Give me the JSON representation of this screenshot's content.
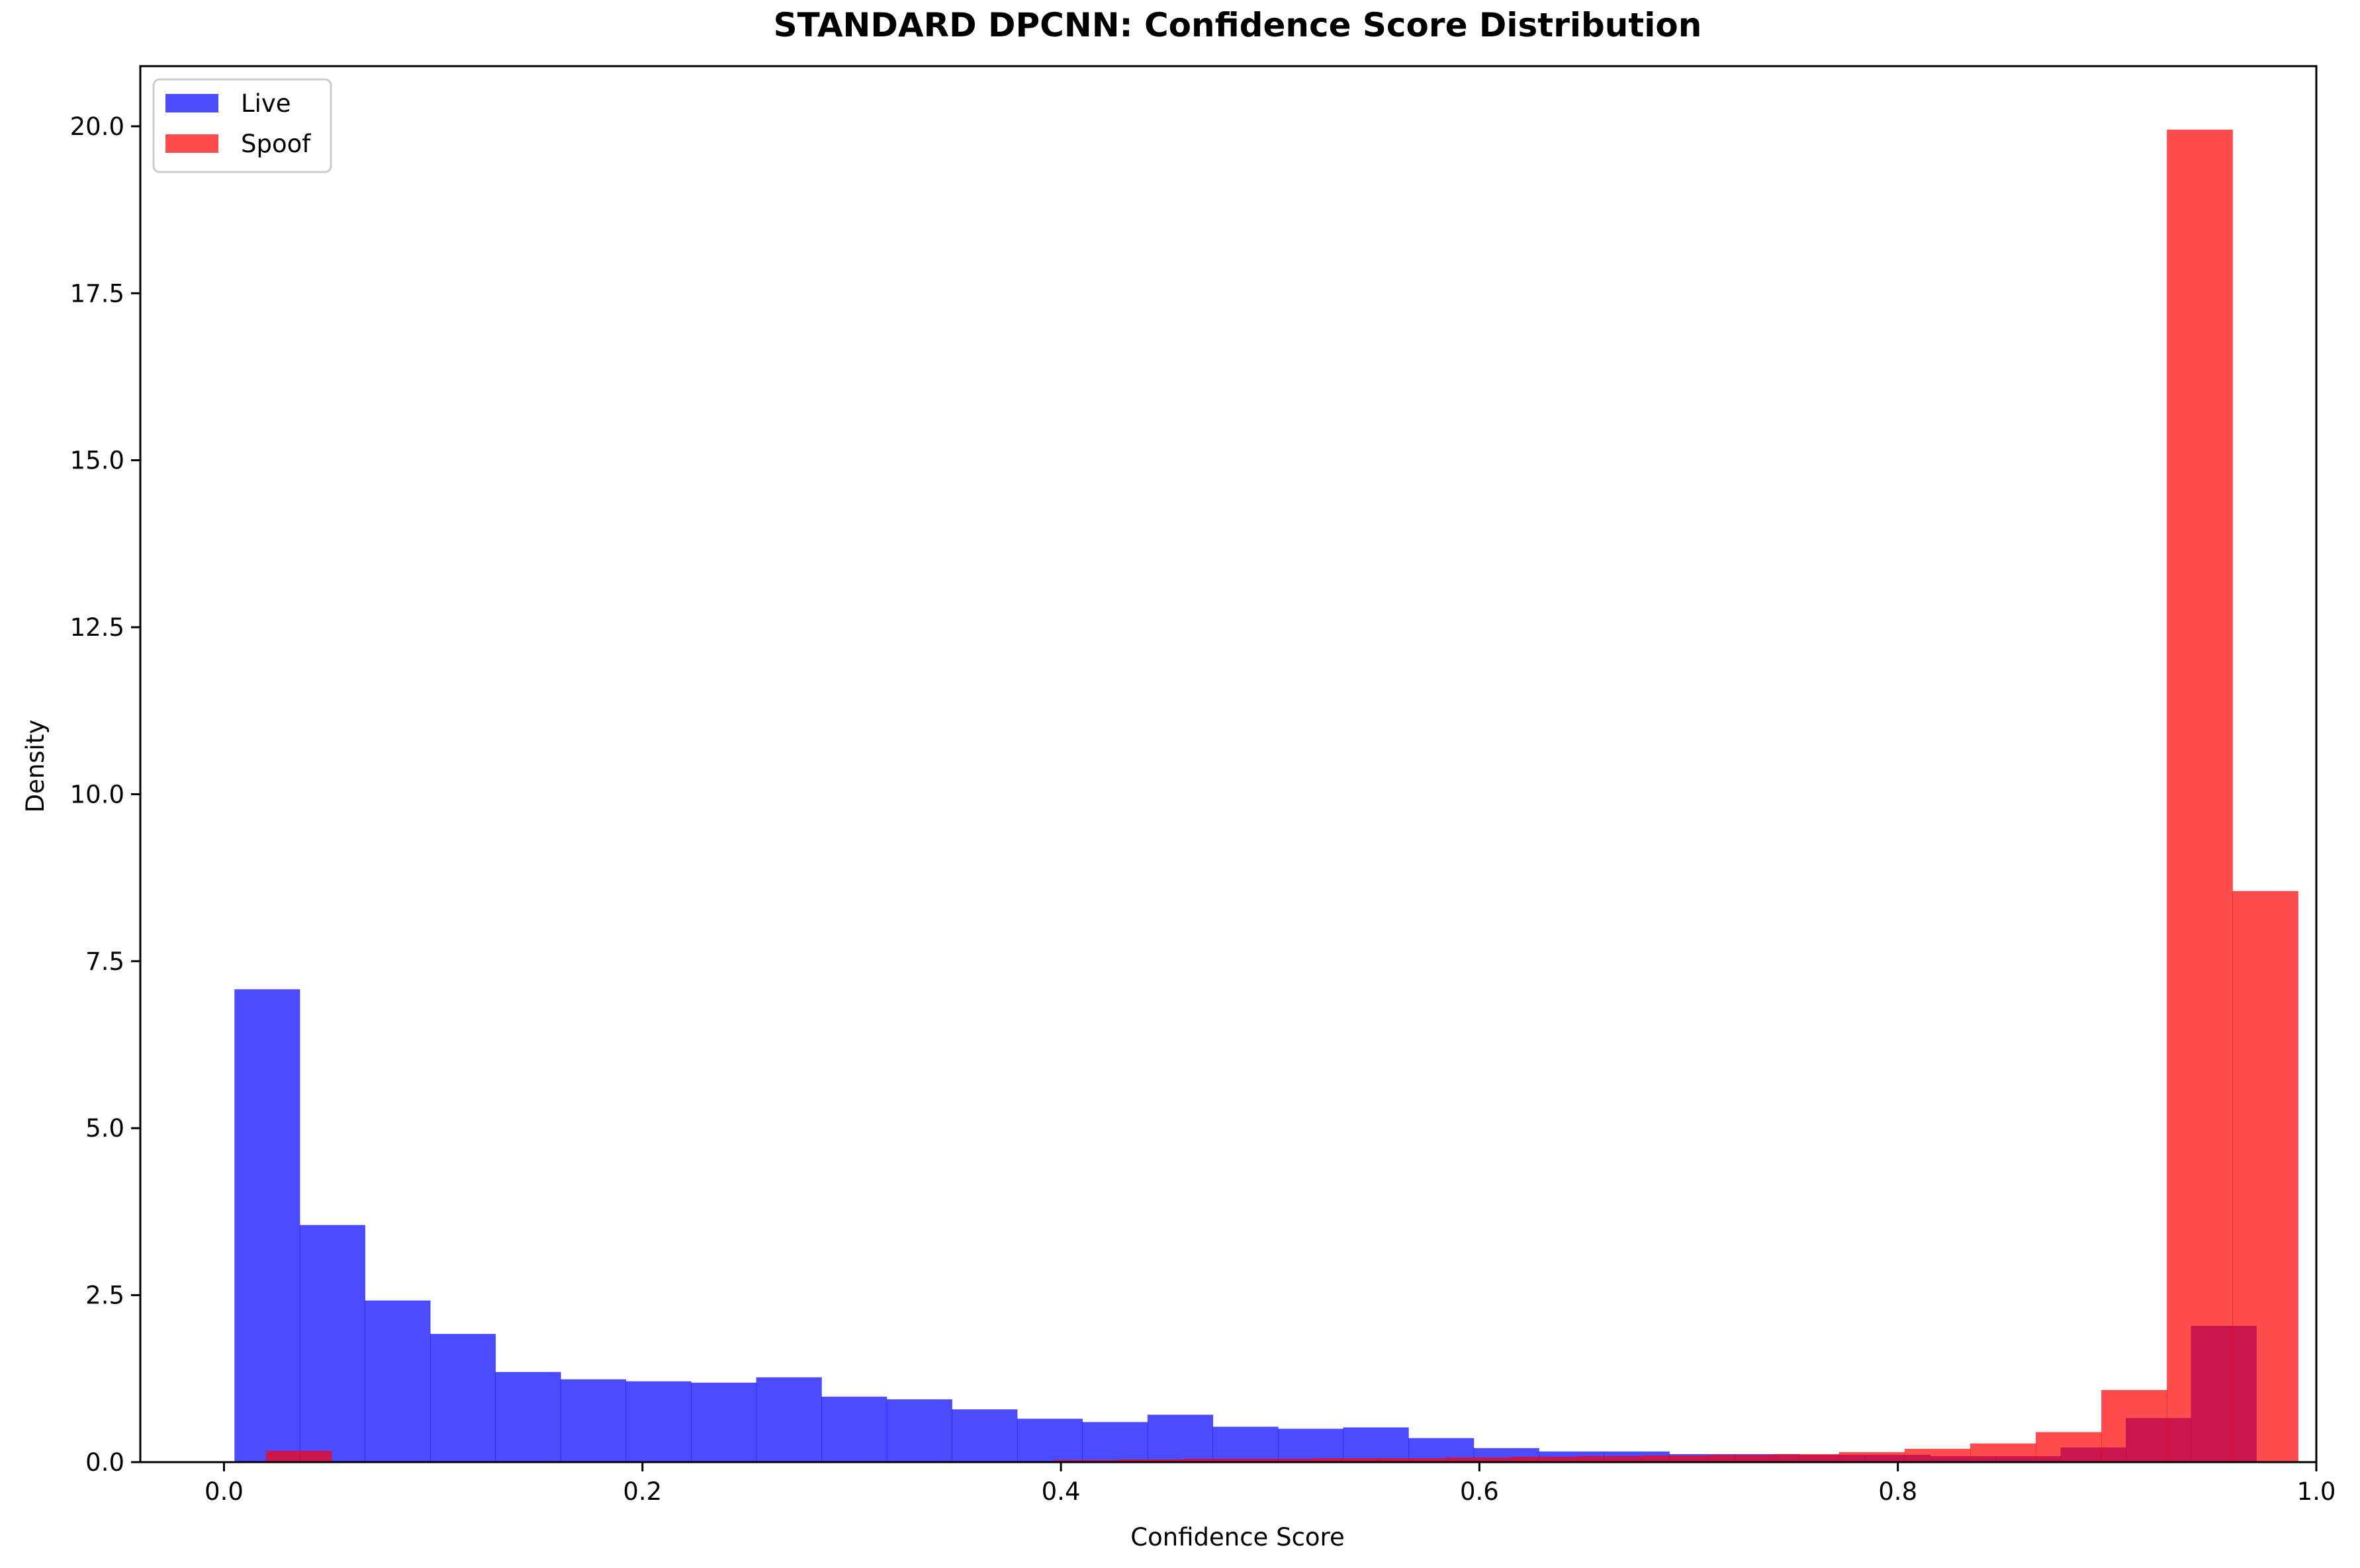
{
  "chart_data": {
    "type": "bar",
    "title": "STANDARD DPCNN: Confidence Score Distribution",
    "xlabel": "Confidence Score",
    "ylabel": "Density",
    "xlim": [
      -0.04,
      1.0
    ],
    "ylim": [
      0,
      20.9
    ],
    "xticks": [
      0.0,
      0.2,
      0.4,
      0.6,
      0.8,
      1.0
    ],
    "xtick_labels": [
      "0.0",
      "0.2",
      "0.4",
      "0.6",
      "0.8",
      "1.0"
    ],
    "yticks": [
      0,
      2.5,
      5,
      7.5,
      10,
      12.5,
      15,
      17.5,
      20
    ],
    "ytick_labels": [
      "0.0",
      "2.5",
      "5.0",
      "7.5",
      "10.0",
      "12.5",
      "15.0",
      "17.5",
      "20.0"
    ],
    "grid": false,
    "legend_position": "top-left",
    "series": [
      {
        "name": "Live",
        "color": "#0000ff",
        "opacity": 0.7,
        "bins_start": 0.005,
        "bin_width": 0.03117,
        "values": [
          7.08,
          3.55,
          2.42,
          1.92,
          1.35,
          1.24,
          1.21,
          1.19,
          1.27,
          0.98,
          0.94,
          0.79,
          0.65,
          0.6,
          0.71,
          0.53,
          0.5,
          0.52,
          0.36,
          0.21,
          0.16,
          0.16,
          0.12,
          0.12,
          0.11,
          0.11,
          0.09,
          0.09,
          0.22,
          0.66,
          2.04
        ]
      },
      {
        "name": "Spoof",
        "color": "#ff0000",
        "opacity": 0.7,
        "bins_start": 0.02,
        "bin_width": 0.03133,
        "values": [
          0.17,
          0.0,
          0.0,
          0.0,
          0.0,
          0.0,
          0.0,
          0.0,
          0.0,
          0.0,
          0.0,
          0.0,
          0.03,
          0.04,
          0.05,
          0.05,
          0.06,
          0.06,
          0.07,
          0.08,
          0.09,
          0.1,
          0.11,
          0.12,
          0.15,
          0.2,
          0.28,
          0.45,
          1.08,
          19.95,
          8.55
        ]
      }
    ]
  }
}
